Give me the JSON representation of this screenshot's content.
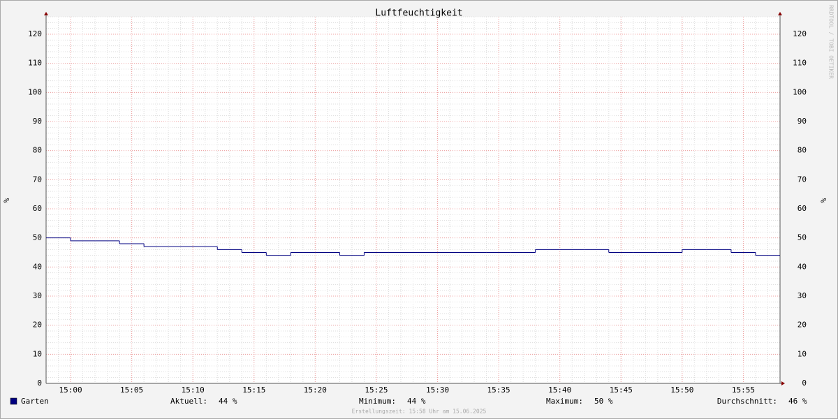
{
  "chart_data": {
    "type": "step",
    "title": "Luftfeuchtigkeit",
    "y_label": "%",
    "y2_label": "%",
    "watermark": "RRDTOOL / TOBI OETIKER",
    "x": [
      "14:58",
      "15:00",
      "15:02",
      "15:04",
      "15:06",
      "15:08",
      "15:10",
      "15:12",
      "15:14",
      "15:16",
      "15:18",
      "15:20",
      "15:22",
      "15:24",
      "15:26",
      "15:28",
      "15:30",
      "15:32",
      "15:34",
      "15:36",
      "15:38",
      "15:40",
      "15:42",
      "15:44",
      "15:46",
      "15:48",
      "15:50",
      "15:52",
      "15:54",
      "15:56"
    ],
    "series": [
      {
        "name": "Garten",
        "color": "#000080",
        "values": [
          50,
          49,
          49,
          48,
          47,
          47,
          47,
          46,
          45,
          44,
          45,
          45,
          44,
          45,
          45,
          45,
          45,
          45,
          45,
          45,
          46,
          46,
          46,
          45,
          45,
          45,
          46,
          46,
          45,
          44
        ]
      }
    ],
    "xlim": [
      "14:58",
      "15:58"
    ],
    "xticks": [
      "15:00",
      "15:05",
      "15:10",
      "15:15",
      "15:20",
      "15:25",
      "15:30",
      "15:35",
      "15:40",
      "15:45",
      "15:50",
      "15:55"
    ],
    "ylim": [
      0,
      126
    ],
    "yticks": [
      0,
      10,
      20,
      30,
      40,
      50,
      60,
      70,
      80,
      90,
      100,
      110,
      120
    ],
    "grid": true,
    "stats": [
      {
        "label": "Aktuell:",
        "value": "44 %"
      },
      {
        "label": "Minimum:",
        "value": "44 %"
      },
      {
        "label": "Maximum:",
        "value": "50 %"
      },
      {
        "label": "Durchschnitt:",
        "value": "46 %"
      }
    ],
    "footer": "Erstellungszeit: 15:58 Uhr am 15.06.2025"
  }
}
